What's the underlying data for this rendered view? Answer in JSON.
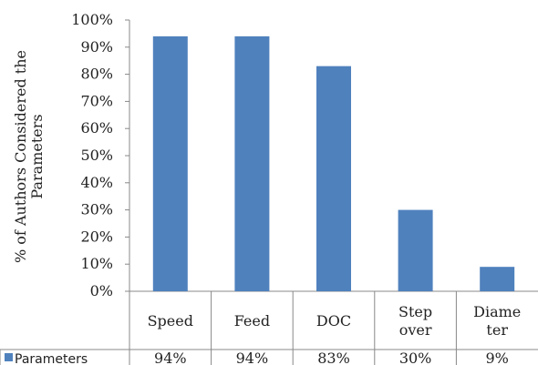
{
  "chart_data": {
    "type": "bar",
    "categories": [
      [
        "Speed"
      ],
      [
        "Feed"
      ],
      [
        "DOC"
      ],
      [
        "Step",
        "over"
      ],
      [
        "Diame",
        "ter"
      ]
    ],
    "series": [
      {
        "name": "Parameters",
        "values": [
          94,
          94,
          83,
          30,
          9
        ],
        "value_labels": [
          "94%",
          "94%",
          "83%",
          "30%",
          "9%"
        ],
        "color": "#4F81BD"
      }
    ],
    "ylabel": [
      "% of Authors Considered the",
      "Parameters"
    ],
    "ylim": [
      0,
      100
    ],
    "yticks": [
      0,
      10,
      20,
      30,
      40,
      50,
      60,
      70,
      80,
      90,
      100
    ],
    "ytick_labels": [
      "0%",
      "10%",
      "20%",
      "30%",
      "40%",
      "50%",
      "60%",
      "70%",
      "80%",
      "90%",
      "100%"
    ],
    "legend": "data-table-bottom",
    "grid": false
  }
}
